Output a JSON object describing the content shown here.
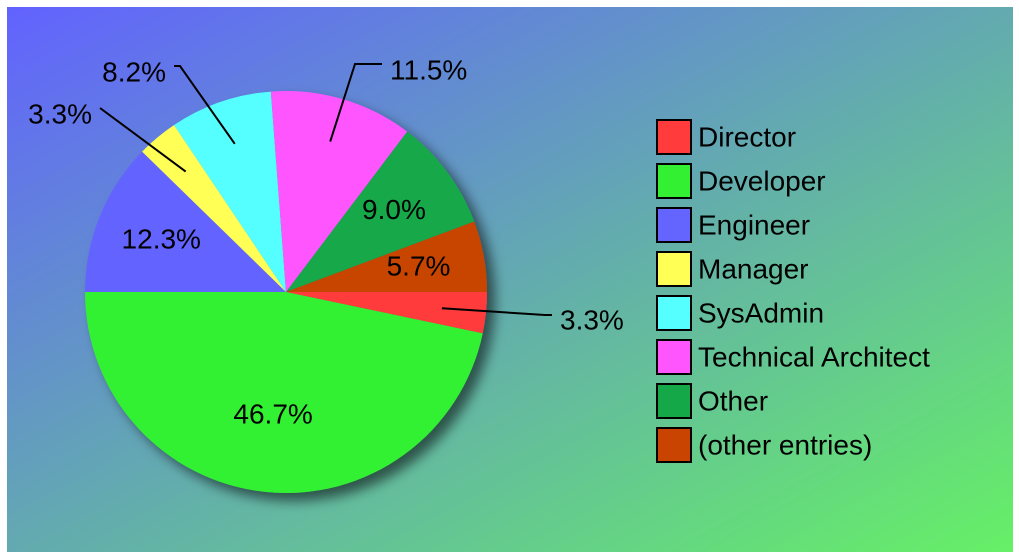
{
  "chart_data": {
    "type": "pie",
    "categories": [
      "Director",
      "Developer",
      "Engineer",
      "Manager",
      "SysAdmin",
      "Technical Architect",
      "Other",
      "(other entries)"
    ],
    "values": [
      3.3,
      46.7,
      12.3,
      3.3,
      8.2,
      11.5,
      9.0,
      5.7
    ],
    "value_labels": [
      "3.3%",
      "46.7%",
      "12.3%",
      "3.3%",
      "8.2%",
      "11.5%",
      "9.0%",
      "5.7%"
    ],
    "colors": [
      "#ff3b3b",
      "#33f033",
      "#6464ff",
      "#ffff55",
      "#55ffff",
      "#ff55ff",
      "#14a848",
      "#c84400"
    ],
    "legend": "right"
  }
}
